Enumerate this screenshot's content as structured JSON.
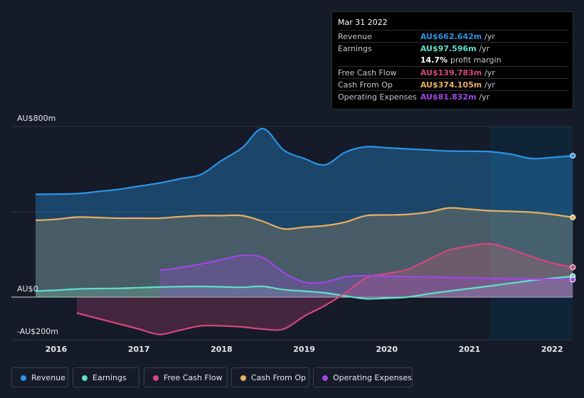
{
  "chart_data": {
    "type": "area",
    "x_unit": "year",
    "xlim": [
      2015.6,
      2022.25
    ],
    "ylim": [
      -200,
      800
    ],
    "y_tick_labels": [
      {
        "value": 800,
        "label": "AU$800m"
      },
      {
        "value": 0,
        "label": "AU$0"
      },
      {
        "value": -200,
        "label": "-AU$200m"
      }
    ],
    "x_ticks": [
      2016,
      2017,
      2018,
      2019,
      2020,
      2021,
      2022
    ],
    "x_tick_labels": [
      "2016",
      "2017",
      "2018",
      "2019",
      "2020",
      "2021",
      "2022"
    ],
    "forecast_start": 2021.25,
    "series": [
      {
        "name": "Revenue",
        "color": "#2b94e5",
        "points": [
          [
            2015.75,
            482
          ],
          [
            2016.25,
            485
          ],
          [
            2016.5,
            495
          ],
          [
            2016.75,
            505
          ],
          [
            2017.0,
            520
          ],
          [
            2017.25,
            535
          ],
          [
            2017.5,
            555
          ],
          [
            2017.75,
            575
          ],
          [
            2018.0,
            640
          ],
          [
            2018.25,
            700
          ],
          [
            2018.5,
            790
          ],
          [
            2018.75,
            690
          ],
          [
            2019.0,
            650
          ],
          [
            2019.25,
            620
          ],
          [
            2019.5,
            680
          ],
          [
            2019.75,
            705
          ],
          [
            2020.0,
            700
          ],
          [
            2020.25,
            695
          ],
          [
            2020.5,
            690
          ],
          [
            2020.75,
            685
          ],
          [
            2021.0,
            684
          ],
          [
            2021.25,
            682
          ],
          [
            2021.5,
            670
          ],
          [
            2021.75,
            650
          ],
          [
            2022.0,
            655
          ],
          [
            2022.25,
            663
          ]
        ]
      },
      {
        "name": "Earnings",
        "color": "#5ee0c8",
        "points": [
          [
            2015.75,
            28
          ],
          [
            2016.0,
            32
          ],
          [
            2016.25,
            38
          ],
          [
            2016.5,
            40
          ],
          [
            2016.75,
            41
          ],
          [
            2017.0,
            44
          ],
          [
            2017.25,
            47
          ],
          [
            2017.5,
            49
          ],
          [
            2017.75,
            50
          ],
          [
            2018.0,
            48
          ],
          [
            2018.25,
            46
          ],
          [
            2018.5,
            50
          ],
          [
            2018.75,
            35
          ],
          [
            2019.0,
            28
          ],
          [
            2019.25,
            20
          ],
          [
            2019.5,
            5
          ],
          [
            2019.75,
            -8
          ],
          [
            2020.0,
            -5
          ],
          [
            2020.25,
            0
          ],
          [
            2020.5,
            15
          ],
          [
            2020.75,
            28
          ],
          [
            2021.0,
            40
          ],
          [
            2021.25,
            52
          ],
          [
            2021.5,
            65
          ],
          [
            2021.75,
            78
          ],
          [
            2022.0,
            88
          ],
          [
            2022.25,
            98
          ]
        ]
      },
      {
        "name": "Free Cash Flow",
        "color": "#d4467f",
        "points": [
          [
            2016.25,
            -75
          ],
          [
            2016.5,
            -100
          ],
          [
            2016.75,
            -125
          ],
          [
            2017.0,
            -150
          ],
          [
            2017.25,
            -175
          ],
          [
            2017.5,
            -155
          ],
          [
            2017.75,
            -135
          ],
          [
            2018.0,
            -135
          ],
          [
            2018.25,
            -140
          ],
          [
            2018.5,
            -150
          ],
          [
            2018.75,
            -150
          ],
          [
            2019.0,
            -90
          ],
          [
            2019.25,
            -40
          ],
          [
            2019.5,
            20
          ],
          [
            2019.75,
            90
          ],
          [
            2020.0,
            110
          ],
          [
            2020.25,
            130
          ],
          [
            2020.5,
            175
          ],
          [
            2020.75,
            220
          ],
          [
            2021.0,
            240
          ],
          [
            2021.25,
            250
          ],
          [
            2021.5,
            225
          ],
          [
            2021.75,
            190
          ],
          [
            2022.0,
            160
          ],
          [
            2022.25,
            140
          ]
        ]
      },
      {
        "name": "Cash From Op",
        "color": "#e8b061",
        "points": [
          [
            2015.75,
            360
          ],
          [
            2016.0,
            365
          ],
          [
            2016.25,
            375
          ],
          [
            2016.5,
            373
          ],
          [
            2016.75,
            370
          ],
          [
            2017.0,
            370
          ],
          [
            2017.25,
            370
          ],
          [
            2017.5,
            377
          ],
          [
            2017.75,
            382
          ],
          [
            2018.0,
            382
          ],
          [
            2018.25,
            382
          ],
          [
            2018.5,
            355
          ],
          [
            2018.75,
            320
          ],
          [
            2019.0,
            328
          ],
          [
            2019.25,
            335
          ],
          [
            2019.5,
            352
          ],
          [
            2019.75,
            382
          ],
          [
            2020.0,
            385
          ],
          [
            2020.25,
            388
          ],
          [
            2020.5,
            398
          ],
          [
            2020.75,
            418
          ],
          [
            2021.0,
            412
          ],
          [
            2021.25,
            405
          ],
          [
            2021.5,
            402
          ],
          [
            2021.75,
            398
          ],
          [
            2022.0,
            388
          ],
          [
            2022.25,
            374
          ]
        ]
      },
      {
        "name": "Operating Expenses",
        "color": "#a146e8",
        "points": [
          [
            2017.25,
            125
          ],
          [
            2017.5,
            138
          ],
          [
            2017.75,
            155
          ],
          [
            2018.0,
            175
          ],
          [
            2018.25,
            195
          ],
          [
            2018.5,
            185
          ],
          [
            2018.75,
            115
          ],
          [
            2019.0,
            70
          ],
          [
            2019.25,
            70
          ],
          [
            2019.5,
            95
          ],
          [
            2019.75,
            100
          ],
          [
            2020.0,
            98
          ],
          [
            2020.25,
            96
          ],
          [
            2020.5,
            94
          ],
          [
            2020.75,
            92
          ],
          [
            2021.0,
            90
          ],
          [
            2021.25,
            88
          ],
          [
            2021.5,
            86
          ],
          [
            2021.75,
            85
          ],
          [
            2022.0,
            83
          ],
          [
            2022.25,
            82
          ]
        ]
      }
    ]
  },
  "tooltip": {
    "date": "Mar 31 2022",
    "rows": [
      {
        "label": "Revenue",
        "value": "AU$662.642m",
        "unit": "/yr",
        "color": "#2b94e5"
      },
      {
        "label": "Earnings",
        "value": "AU$97.596m",
        "unit": "/yr",
        "color": "#5ee0c8"
      },
      {
        "label": "",
        "value": "14.7%",
        "unit": "profit margin",
        "color": "#ffffff"
      },
      {
        "label": "Free Cash Flow",
        "value": "AU$139.783m",
        "unit": "/yr",
        "color": "#d4467f"
      },
      {
        "label": "Cash From Op",
        "value": "AU$374.105m",
        "unit": "/yr",
        "color": "#e8b061"
      },
      {
        "label": "Operating Expenses",
        "value": "AU$81.832m",
        "unit": "/yr",
        "color": "#a146e8"
      }
    ]
  },
  "legend": [
    {
      "label": "Revenue",
      "color": "#2b94e5"
    },
    {
      "label": "Earnings",
      "color": "#5ee0c8"
    },
    {
      "label": "Free Cash Flow",
      "color": "#d4467f"
    },
    {
      "label": "Cash From Op",
      "color": "#e8b061"
    },
    {
      "label": "Operating Expenses",
      "color": "#a146e8"
    }
  ]
}
